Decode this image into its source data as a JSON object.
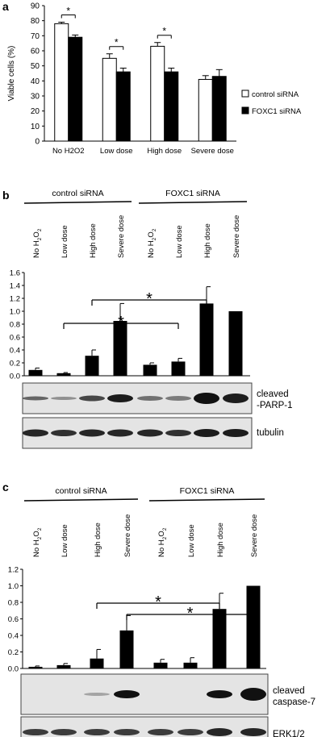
{
  "figure": {
    "panel_a": {
      "letter": "a",
      "chart_data": {
        "type": "bar",
        "ylabel": "Viable cells (%)",
        "ylim": [
          0,
          90
        ],
        "yticks": [
          0,
          10,
          20,
          30,
          40,
          50,
          60,
          70,
          80,
          90
        ],
        "categories": [
          "No H2O2",
          "Low dose",
          "High dose",
          "Severe dose"
        ],
        "series": [
          {
            "name": "control siRNA",
            "values": [
              78,
              55,
              63,
              41
            ],
            "errors": [
              1,
              3,
              2.5,
              2.5
            ],
            "color": "#ffffff"
          },
          {
            "name": "FOXC1 siRNA",
            "values": [
              69,
              46,
              46,
              43
            ],
            "errors": [
              1.5,
              2.5,
              2.5,
              4.5
            ],
            "color": "#000000"
          }
        ],
        "significance": [
          {
            "category": 0,
            "label": "*"
          },
          {
            "category": 1,
            "label": "*"
          },
          {
            "category": 2,
            "label": "*"
          }
        ],
        "legend_position": "right"
      }
    },
    "panel_b": {
      "letter": "b",
      "group_labels": [
        "control siRNA",
        "FOXC1 siRNA"
      ],
      "lane_labels": [
        "No H2O2",
        "Low  dose",
        "High dose",
        "Severe dose",
        "No H2O2",
        "Low  dose",
        "High dose",
        "Severe dose"
      ],
      "chart_data": {
        "type": "bar",
        "ylim": [
          0,
          1.6
        ],
        "yticks": [
          "0.0",
          "0.2",
          "0.4",
          "0.6",
          "0.8",
          "1.0",
          "1.2",
          "1.4",
          "1.6"
        ],
        "values": [
          0.09,
          0.04,
          0.31,
          0.85,
          0.17,
          0.22,
          1.12,
          1.0
        ],
        "errors": [
          0.03,
          0.01,
          0.09,
          0.27,
          0.03,
          0.05,
          0.26,
          0
        ],
        "significance": [
          {
            "from": 2,
            "to": 6,
            "label": "*"
          },
          {
            "from": 1,
            "to": 5,
            "label": "*"
          }
        ]
      },
      "blot_labels": [
        "cleaved\n-PARP-1",
        "tubulin"
      ]
    },
    "panel_c": {
      "letter": "c",
      "group_labels": [
        "control siRNA",
        "FOXC1 siRNA"
      ],
      "lane_labels": [
        "No H2O2",
        "Low  dose",
        "High dose",
        "Severe dose",
        "No H2O2",
        "Low  dose",
        "High dose",
        "Severe dose"
      ],
      "chart_data": {
        "type": "bar",
        "ylim": [
          0,
          1.2
        ],
        "yticks": [
          "0.0",
          "0.2",
          "0.4",
          "0.6",
          "0.8",
          "1.0",
          "1.2"
        ],
        "values": [
          0.02,
          0.04,
          0.12,
          0.46,
          0.07,
          0.07,
          0.72,
          1.0
        ],
        "errors": [
          0.01,
          0.02,
          0.11,
          0.18,
          0.04,
          0.06,
          0.19,
          0
        ],
        "significance": [
          {
            "from": 2,
            "to": 6,
            "label": "*"
          },
          {
            "from": 3,
            "to": 7,
            "label": "*"
          }
        ]
      },
      "blot_labels": [
        "cleaved\ncaspase-7",
        "ERK1/2"
      ]
    }
  }
}
